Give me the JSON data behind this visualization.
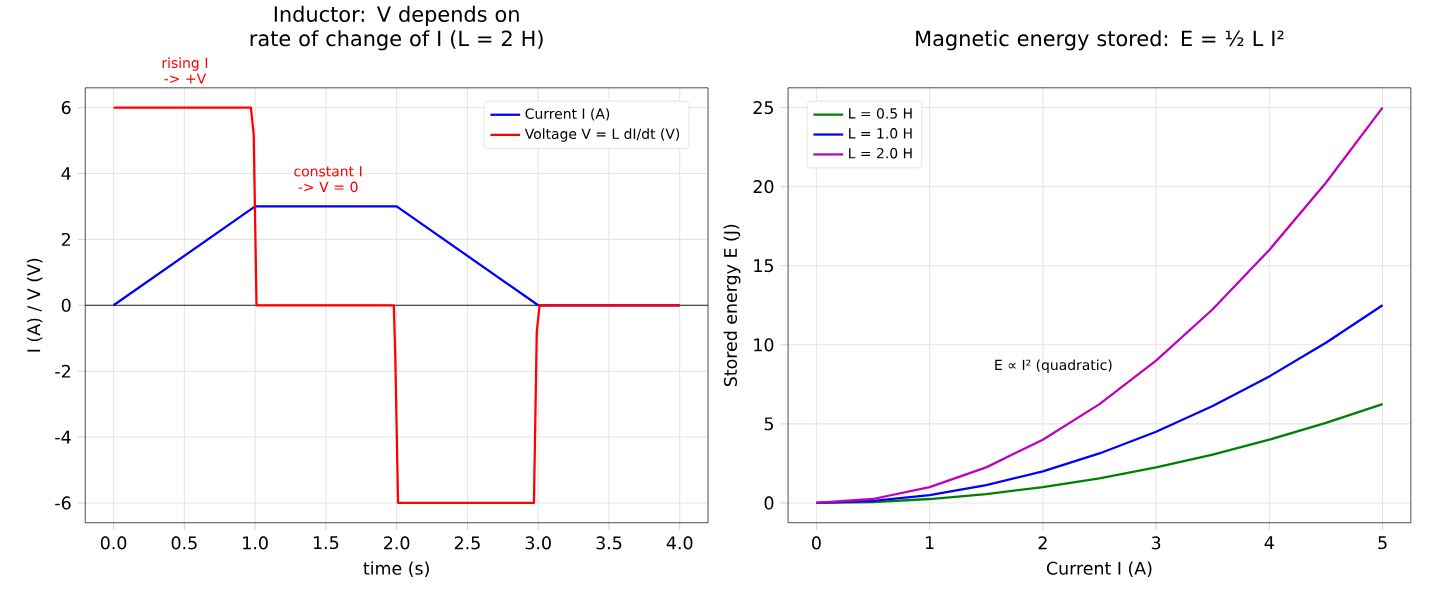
{
  "chart_data": [
    {
      "type": "line",
      "title": "Inductor: V depends on rate of change of I (L = 2 H)",
      "xlabel": "time (s)",
      "ylabel": "I (A)  /  V (V)",
      "xlim": [
        -0.2,
        4.2
      ],
      "ylim": [
        -6.6,
        6.6
      ],
      "xticks": [
        {
          "value": 0,
          "label": "0.0"
        },
        {
          "value": 0.5,
          "label": "0.5"
        },
        {
          "value": 1,
          "label": "1.0"
        },
        {
          "value": 1.5,
          "label": "1.5"
        },
        {
          "value": 2,
          "label": "2.0"
        },
        {
          "value": 2.5,
          "label": "2.5"
        },
        {
          "value": 3,
          "label": "3.0"
        },
        {
          "value": 3.5,
          "label": "3.5"
        },
        {
          "value": 4,
          "label": "4.0"
        }
      ],
      "yticks": [
        -6,
        -4,
        -2,
        0,
        2,
        4,
        6
      ],
      "grid": true,
      "legend": "top right",
      "ref_lines": [
        {
          "axis": "y",
          "value": 0,
          "color": "#000000"
        }
      ],
      "annotations": [
        "rising I -> +V",
        "constant I -> V = 0"
      ],
      "series": [
        {
          "name": "Current I (A)",
          "color": "#0000ff",
          "x": [
            0,
            1,
            2,
            3,
            4
          ],
          "values": [
            0,
            3,
            3,
            0,
            0
          ]
        },
        {
          "name": "Voltage V = L dI/dt (V)",
          "color": "#ff0000",
          "x": [
            0,
            0.97,
            0.99,
            1.01,
            1.98,
            1.99,
            2.01,
            2.97,
            2.99,
            3.01,
            4
          ],
          "values": [
            6,
            6,
            5.2,
            0,
            0,
            -1.5,
            -6,
            -6,
            -0.8,
            0,
            0
          ]
        }
      ]
    },
    {
      "type": "line",
      "title": "Magnetic energy stored:  E = ½ L I²",
      "xlabel": "Current I (A)",
      "ylabel": "Stored energy E (J)",
      "xlim": [
        -0.25,
        5.25
      ],
      "ylim": [
        -1.25,
        26.25
      ],
      "xticks": [
        0,
        1,
        2,
        3,
        4,
        5
      ],
      "yticks": [
        0,
        5,
        10,
        15,
        20,
        25
      ],
      "grid": true,
      "legend": "top left",
      "annotations": [
        "E ∝ I² (quadratic)"
      ],
      "series": [
        {
          "name": "L = 0.5 H",
          "color": "#008000",
          "x": [
            0,
            0.5,
            1,
            1.5,
            2,
            2.5,
            3,
            3.5,
            4,
            4.5,
            5
          ],
          "values": [
            0,
            0.06,
            0.25,
            0.56,
            1,
            1.56,
            2.25,
            3.06,
            4,
            5.06,
            6.25
          ]
        },
        {
          "name": "L = 1.0 H",
          "color": "#0000ff",
          "x": [
            0,
            0.5,
            1,
            1.5,
            2,
            2.5,
            3,
            3.5,
            4,
            4.5,
            5
          ],
          "values": [
            0,
            0.13,
            0.5,
            1.13,
            2,
            3.13,
            4.5,
            6.13,
            8,
            10.13,
            12.5
          ]
        },
        {
          "name": "L = 2.0 H",
          "color": "#bf00bf",
          "x": [
            0,
            0.5,
            1,
            1.5,
            2,
            2.5,
            3,
            3.5,
            4,
            4.5,
            5
          ],
          "values": [
            0,
            0.25,
            1,
            2.25,
            4,
            6.25,
            9,
            12.25,
            16,
            20.25,
            25
          ]
        }
      ]
    }
  ]
}
